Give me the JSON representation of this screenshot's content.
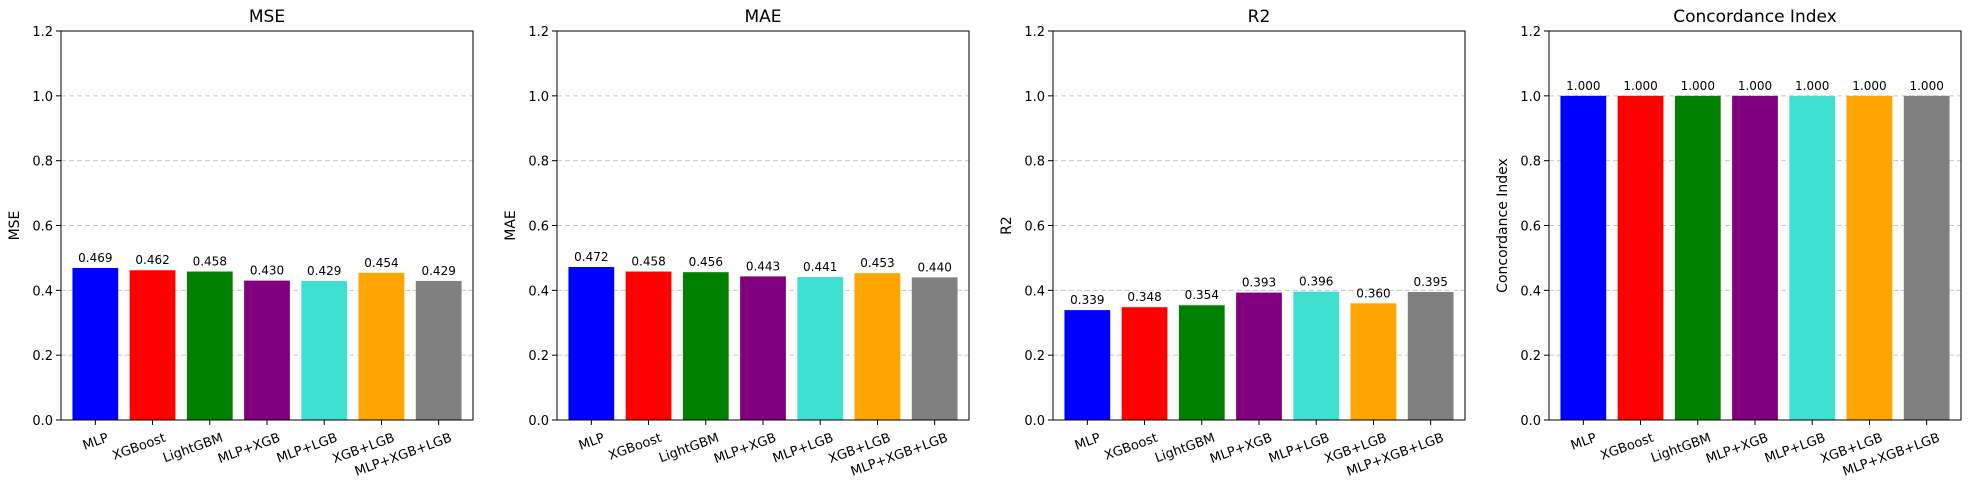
{
  "chart_data": [
    {
      "type": "bar",
      "title": "MSE",
      "ylabel": "MSE",
      "categories": [
        "MLP",
        "XGBoost",
        "LightGBM",
        "MLP+XGB",
        "MLP+LGB",
        "XGB+LGB",
        "MLP+XGB+LGB"
      ],
      "values": [
        0.469,
        0.462,
        0.458,
        0.43,
        0.429,
        0.454,
        0.429
      ],
      "labels": [
        "0.469",
        "0.462",
        "0.458",
        "0.430",
        "0.429",
        "0.454",
        "0.429"
      ],
      "ylim": [
        0,
        1.2
      ],
      "yticks": [
        "0.0",
        "0.2",
        "0.4",
        "0.6",
        "0.8",
        "1.0",
        "1.2"
      ],
      "grid": "y-dashed"
    },
    {
      "type": "bar",
      "title": "MAE",
      "ylabel": "MAE",
      "categories": [
        "MLP",
        "XGBoost",
        "LightGBM",
        "MLP+XGB",
        "MLP+LGB",
        "XGB+LGB",
        "MLP+XGB+LGB"
      ],
      "values": [
        0.472,
        0.458,
        0.456,
        0.443,
        0.441,
        0.453,
        0.44
      ],
      "labels": [
        "0.472",
        "0.458",
        "0.456",
        "0.443",
        "0.441",
        "0.453",
        "0.440"
      ],
      "ylim": [
        0,
        1.2
      ],
      "yticks": [
        "0.0",
        "0.2",
        "0.4",
        "0.6",
        "0.8",
        "1.0",
        "1.2"
      ],
      "grid": "y-dashed"
    },
    {
      "type": "bar",
      "title": "R2",
      "ylabel": "R2",
      "categories": [
        "MLP",
        "XGBoost",
        "LightGBM",
        "MLP+XGB",
        "MLP+LGB",
        "XGB+LGB",
        "MLP+XGB+LGB"
      ],
      "values": [
        0.339,
        0.348,
        0.354,
        0.393,
        0.396,
        0.36,
        0.395
      ],
      "labels": [
        "0.339",
        "0.348",
        "0.354",
        "0.393",
        "0.396",
        "0.360",
        "0.395"
      ],
      "ylim": [
        0,
        1.2
      ],
      "yticks": [
        "0.0",
        "0.2",
        "0.4",
        "0.6",
        "0.8",
        "1.0",
        "1.2"
      ],
      "grid": "y-dashed"
    },
    {
      "type": "bar",
      "title": "Concordance Index",
      "ylabel": "Concordance Index",
      "categories": [
        "MLP",
        "XGBoost",
        "LightGBM",
        "MLP+XGB",
        "MLP+LGB",
        "XGB+LGB",
        "MLP+XGB+LGB"
      ],
      "values": [
        1.0,
        1.0,
        1.0,
        1.0,
        1.0,
        1.0,
        1.0
      ],
      "labels": [
        "1.000",
        "1.000",
        "1.000",
        "1.000",
        "1.000",
        "1.000",
        "1.000"
      ],
      "ylim": [
        0,
        1.2
      ],
      "yticks": [
        "0.0",
        "0.2",
        "0.4",
        "0.6",
        "0.8",
        "1.0",
        "1.2"
      ],
      "grid": "y-dashed"
    }
  ],
  "colors": {
    "bars": [
      "#0000ff",
      "#ff0000",
      "#008000",
      "#800080",
      "#40e0d0",
      "#ffa500",
      "#808080"
    ],
    "grid": "#c8c8c8",
    "axes": "#000000"
  }
}
